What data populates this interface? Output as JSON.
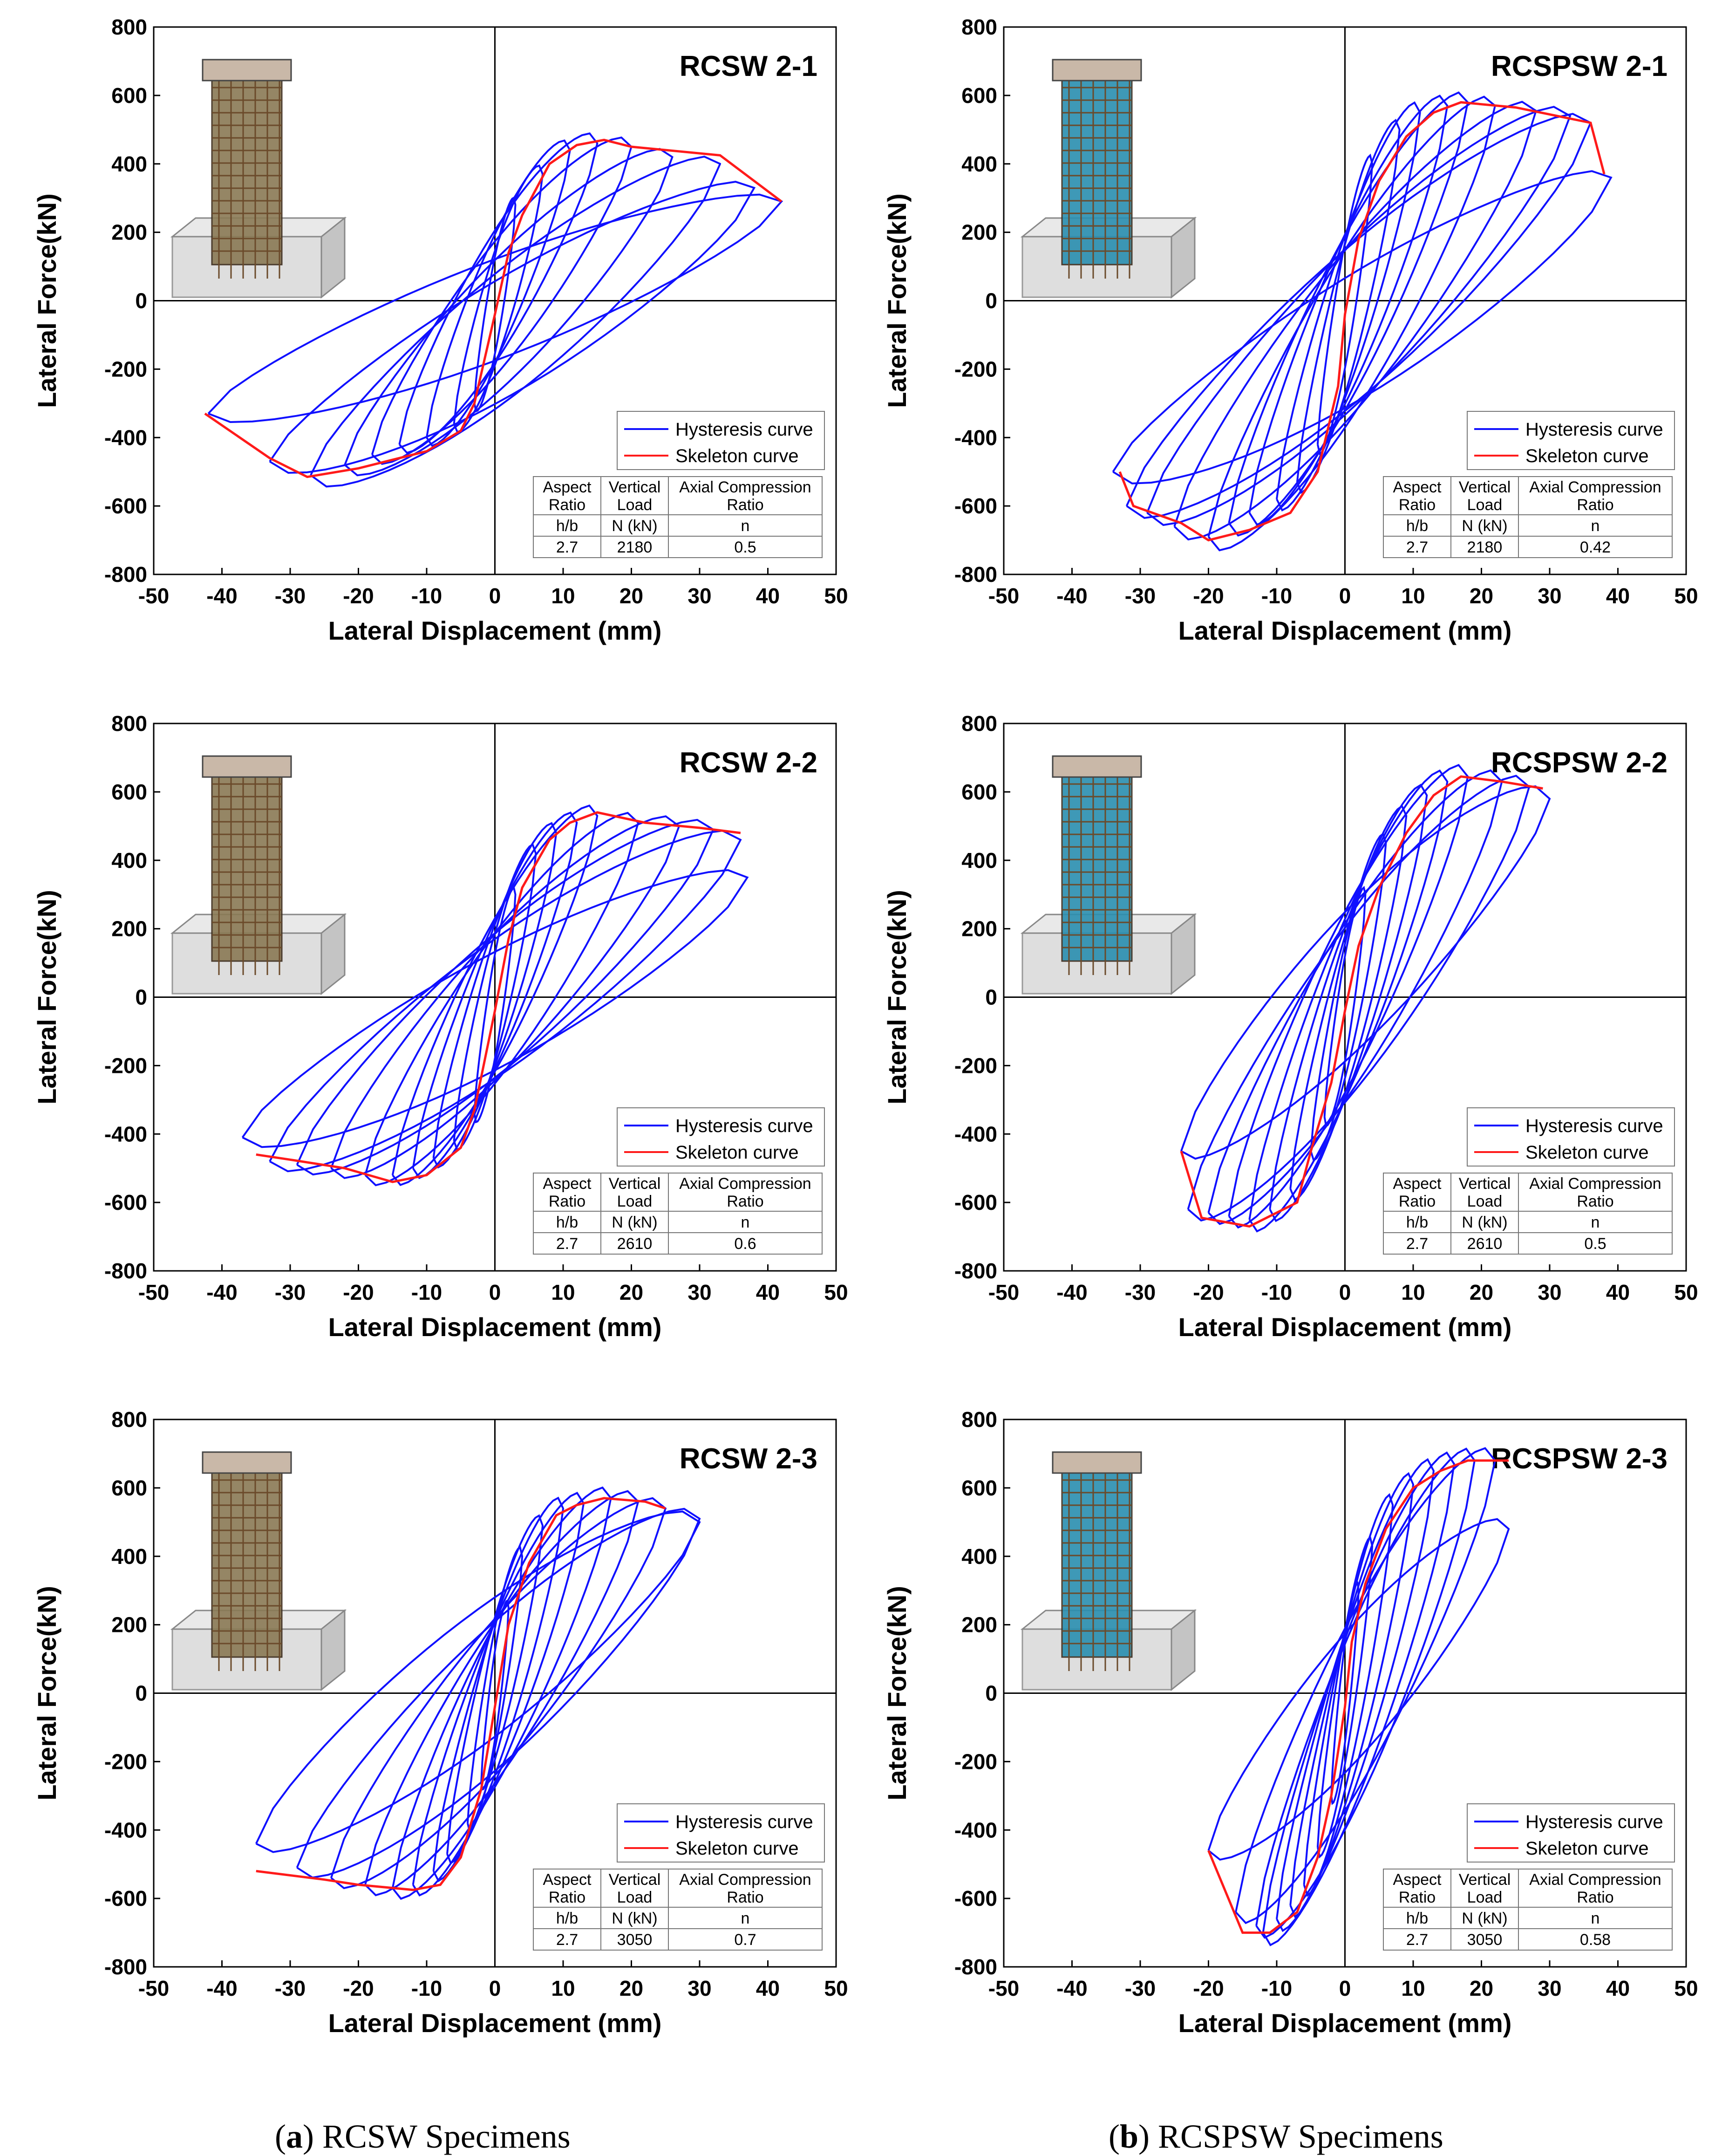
{
  "figure": {
    "caption_a_label": "a",
    "caption_a_text": "RCSW Specimens",
    "caption_b_label": "b",
    "caption_b_text": "RCSPSW Specimens"
  },
  "colors": {
    "hysteresis": "#1010ff",
    "skeleton": "#ff1a1a",
    "axis": "#000000",
    "concrete": "#d9d9d9",
    "plate": "#2a8fb0",
    "rebar": "#6b4a2a"
  },
  "chart_data": [
    {
      "type": "line",
      "title": "RCSW 2-1",
      "xlabel": "Lateral Displacement (mm)",
      "ylabel": "Lateral Force(kN)",
      "xlim": [
        -50,
        50
      ],
      "ylim": [
        -800,
        800
      ],
      "xticks": [
        -50,
        -40,
        -30,
        -20,
        -10,
        0,
        10,
        20,
        30,
        40,
        50
      ],
      "yticks": [
        -800,
        -600,
        -400,
        -200,
        0,
        200,
        400,
        600,
        800
      ],
      "legend": [
        "Hysteresis curve",
        "Skeleton curve"
      ],
      "specimen_icon": "rc-wall-icon",
      "table": {
        "headers": [
          [
            "Aspect",
            "Ratio"
          ],
          [
            "Vertical",
            "Load"
          ],
          [
            "Axial Compression",
            "Ratio"
          ]
        ],
        "units": [
          "h/b",
          "N (kN)",
          "n"
        ],
        "values": [
          "2.7",
          "2180",
          "0.5"
        ]
      },
      "skeleton": [
        [
          -42.5,
          -330
        ],
        [
          -33,
          -460
        ],
        [
          -27.5,
          -515
        ],
        [
          -20,
          -490
        ],
        [
          -10,
          -440
        ],
        [
          -5,
          -380
        ],
        [
          -3,
          -300
        ],
        [
          0,
          -40
        ],
        [
          2,
          140
        ],
        [
          4,
          250
        ],
        [
          8,
          400
        ],
        [
          12,
          455
        ],
        [
          16,
          470
        ],
        [
          20,
          450
        ],
        [
          33,
          425
        ],
        [
          42,
          290
        ]
      ],
      "peaks": [
        [
          3,
          -300,
          3,
          280
        ],
        [
          6,
          -360,
          7,
          370
        ],
        [
          10,
          -400,
          11,
          440
        ],
        [
          14,
          -420,
          15,
          460
        ],
        [
          18,
          -450,
          20,
          450
        ],
        [
          22,
          -480,
          26,
          420
        ],
        [
          27,
          -510,
          33,
          400
        ],
        [
          33,
          -470,
          38,
          330
        ],
        [
          42,
          -330,
          42,
          290
        ]
      ]
    },
    {
      "type": "line",
      "title": "RCSPSW 2-1",
      "xlabel": "Lateral Displacement (mm)",
      "ylabel": "Lateral Force(kN)",
      "xlim": [
        -50,
        50
      ],
      "ylim": [
        -800,
        800
      ],
      "xticks": [
        -50,
        -40,
        -30,
        -20,
        -10,
        0,
        10,
        20,
        30,
        40,
        50
      ],
      "yticks": [
        -800,
        -600,
        -400,
        -200,
        0,
        200,
        400,
        600,
        800
      ],
      "legend": [
        "Hysteresis curve",
        "Skeleton curve"
      ],
      "specimen_icon": "rcsp-wall-icon",
      "table": {
        "headers": [
          [
            "Aspect",
            "Ratio"
          ],
          [
            "Vertical",
            "Load"
          ],
          [
            "Axial Compression",
            "Ratio"
          ]
        ],
        "units": [
          "h/b",
          "N (kN)",
          "n"
        ],
        "values": [
          "2.7",
          "2180",
          "0.42"
        ]
      },
      "skeleton": [
        [
          -33,
          -500
        ],
        [
          -31,
          -600
        ],
        [
          -24,
          -650
        ],
        [
          -20,
          -700
        ],
        [
          -14,
          -670
        ],
        [
          -8,
          -620
        ],
        [
          -4,
          -500
        ],
        [
          -1,
          -250
        ],
        [
          0,
          -40
        ],
        [
          2,
          180
        ],
        [
          5,
          350
        ],
        [
          9,
          480
        ],
        [
          13,
          550
        ],
        [
          17,
          580
        ],
        [
          25,
          565
        ],
        [
          36,
          520
        ],
        [
          38,
          370
        ]
      ],
      "peaks": [
        [
          4,
          -420,
          4,
          400
        ],
        [
          7,
          -530,
          8,
          500
        ],
        [
          10,
          -580,
          11,
          550
        ],
        [
          14,
          -620,
          15,
          570
        ],
        [
          17,
          -650,
          18,
          580
        ],
        [
          20,
          -690,
          22,
          570
        ],
        [
          25,
          -660,
          28,
          555
        ],
        [
          29,
          -620,
          33,
          540
        ],
        [
          32,
          -600,
          36,
          520
        ],
        [
          34,
          -500,
          39,
          360
        ]
      ]
    },
    {
      "type": "line",
      "title": "RCSW 2-2",
      "xlabel": "Lateral Displacement (mm)",
      "ylabel": "Lateral Force(kN)",
      "xlim": [
        -50,
        50
      ],
      "ylim": [
        -800,
        800
      ],
      "xticks": [
        -50,
        -40,
        -30,
        -20,
        -10,
        0,
        10,
        20,
        30,
        40,
        50
      ],
      "yticks": [
        -800,
        -600,
        -400,
        -200,
        0,
        200,
        400,
        600,
        800
      ],
      "legend": [
        "Hysteresis curve",
        "Skeleton curve"
      ],
      "specimen_icon": "rc-wall-icon",
      "table": {
        "headers": [
          [
            "Aspect",
            "Ratio"
          ],
          [
            "Vertical",
            "Load"
          ],
          [
            "Axial Compression",
            "Ratio"
          ]
        ],
        "units": [
          "h/b",
          "N (kN)",
          "n"
        ],
        "values": [
          "2.7",
          "2610",
          "0.6"
        ]
      },
      "skeleton": [
        [
          -35,
          -460
        ],
        [
          -30,
          -475
        ],
        [
          -22,
          -500
        ],
        [
          -15,
          -540
        ],
        [
          -10,
          -520
        ],
        [
          -5,
          -440
        ],
        [
          -3,
          -330
        ],
        [
          0,
          -40
        ],
        [
          2,
          170
        ],
        [
          4,
          320
        ],
        [
          8,
          460
        ],
        [
          11,
          510
        ],
        [
          15,
          540
        ],
        [
          22,
          510
        ],
        [
          30,
          495
        ],
        [
          36,
          480
        ]
      ],
      "peaks": [
        [
          3,
          -340,
          3,
          300
        ],
        [
          6,
          -420,
          6,
          420
        ],
        [
          9,
          -470,
          9,
          480
        ],
        [
          12,
          -500,
          12,
          510
        ],
        [
          15,
          -520,
          15,
          530
        ],
        [
          19,
          -520,
          21,
          510
        ],
        [
          24,
          -500,
          27,
          500
        ],
        [
          29,
          -490,
          32,
          490
        ],
        [
          33,
          -480,
          36,
          460
        ],
        [
          37,
          -410,
          37,
          350
        ]
      ]
    },
    {
      "type": "line",
      "title": "RCSPSW 2-2",
      "xlabel": "Lateral Displacement (mm)",
      "ylabel": "Lateral Force(kN)",
      "xlim": [
        -50,
        50
      ],
      "ylim": [
        -800,
        800
      ],
      "xticks": [
        -50,
        -40,
        -30,
        -20,
        -10,
        0,
        10,
        20,
        30,
        40,
        50
      ],
      "yticks": [
        -800,
        -600,
        -400,
        -200,
        0,
        200,
        400,
        600,
        800
      ],
      "legend": [
        "Hysteresis curve",
        "Skeleton curve"
      ],
      "specimen_icon": "rcsp-wall-icon",
      "table": {
        "headers": [
          [
            "Aspect",
            "Ratio"
          ],
          [
            "Vertical",
            "Load"
          ],
          [
            "Axial Compression",
            "Ratio"
          ]
        ],
        "units": [
          "h/b",
          "N (kN)",
          "n"
        ],
        "values": [
          "2.7",
          "2610",
          "0.5"
        ]
      },
      "skeleton": [
        [
          -24,
          -450
        ],
        [
          -21,
          -645
        ],
        [
          -14,
          -670
        ],
        [
          -7,
          -600
        ],
        [
          -5,
          -450
        ],
        [
          -2,
          -250
        ],
        [
          0,
          -40
        ],
        [
          2,
          150
        ],
        [
          5,
          320
        ],
        [
          9,
          480
        ],
        [
          13,
          590
        ],
        [
          17,
          645
        ],
        [
          23,
          630
        ],
        [
          29,
          610
        ]
      ],
      "peaks": [
        [
          3,
          -350,
          3,
          300
        ],
        [
          5,
          -450,
          6,
          450
        ],
        [
          8,
          -560,
          9,
          530
        ],
        [
          11,
          -620,
          12,
          590
        ],
        [
          14,
          -650,
          15,
          630
        ],
        [
          17,
          -640,
          18,
          645
        ],
        [
          20,
          -630,
          23,
          630
        ],
        [
          23,
          -620,
          27,
          615
        ],
        [
          24,
          -450,
          30,
          580
        ]
      ]
    },
    {
      "type": "line",
      "title": "RCSW 2-3",
      "xlabel": "Lateral Displacement (mm)",
      "ylabel": "Lateral Force(kN)",
      "xlim": [
        -50,
        50
      ],
      "ylim": [
        -800,
        800
      ],
      "xticks": [
        -50,
        -40,
        -30,
        -20,
        -10,
        0,
        10,
        20,
        30,
        40,
        50
      ],
      "yticks": [
        -800,
        -600,
        -400,
        -200,
        0,
        200,
        400,
        600,
        800
      ],
      "legend": [
        "Hysteresis curve",
        "Skeleton curve"
      ],
      "specimen_icon": "rc-wall-icon",
      "table": {
        "headers": [
          [
            "Aspect",
            "Ratio"
          ],
          [
            "Vertical",
            "Load"
          ],
          [
            "Axial Compression",
            "Ratio"
          ]
        ],
        "units": [
          "h/b",
          "N (kN)",
          "n"
        ],
        "values": [
          "2.7",
          "3050",
          "0.7"
        ]
      },
      "skeleton": [
        [
          -35,
          -520
        ],
        [
          -25,
          -545
        ],
        [
          -20,
          -560
        ],
        [
          -12,
          -575
        ],
        [
          -8,
          -560
        ],
        [
          -5,
          -480
        ],
        [
          -2,
          -280
        ],
        [
          0,
          -40
        ],
        [
          2,
          200
        ],
        [
          5,
          380
        ],
        [
          9,
          520
        ],
        [
          12,
          550
        ],
        [
          16,
          570
        ],
        [
          22,
          560
        ],
        [
          25,
          540
        ]
      ],
      "peaks": [
        [
          2,
          -260,
          2,
          250
        ],
        [
          4,
          -380,
          4,
          400
        ],
        [
          7,
          -470,
          7,
          490
        ],
        [
          9,
          -520,
          10,
          540
        ],
        [
          12,
          -560,
          13,
          555
        ],
        [
          15,
          -570,
          17,
          570
        ],
        [
          19,
          -560,
          21,
          560
        ],
        [
          24,
          -540,
          25,
          540
        ],
        [
          29,
          -510,
          30,
          510
        ],
        [
          35,
          -440,
          30,
          500
        ]
      ]
    },
    {
      "type": "line",
      "title": "RCSPSW 2-3",
      "xlabel": "Lateral Displacement (mm)",
      "ylabel": "Lateral Force(kN)",
      "xlim": [
        -50,
        50
      ],
      "ylim": [
        -800,
        800
      ],
      "xticks": [
        -50,
        -40,
        -30,
        -20,
        -10,
        0,
        10,
        20,
        30,
        40,
        50
      ],
      "yticks": [
        -800,
        -600,
        -400,
        -200,
        0,
        200,
        400,
        600,
        800
      ],
      "legend": [
        "Hysteresis curve",
        "Skeleton curve"
      ],
      "specimen_icon": "rcsp-wall-icon",
      "table": {
        "headers": [
          [
            "Aspect",
            "Ratio"
          ],
          [
            "Vertical",
            "Load"
          ],
          [
            "Axial Compression",
            "Ratio"
          ]
        ],
        "units": [
          "h/b",
          "N (kN)",
          "n"
        ],
        "values": [
          "2.7",
          "3050",
          "0.58"
        ]
      },
      "skeleton": [
        [
          -20,
          -460
        ],
        [
          -15,
          -700
        ],
        [
          -11,
          -700
        ],
        [
          -7,
          -640
        ],
        [
          -4,
          -480
        ],
        [
          -2,
          -300
        ],
        [
          0,
          -40
        ],
        [
          1,
          150
        ],
        [
          3,
          320
        ],
        [
          6,
          480
        ],
        [
          10,
          600
        ],
        [
          14,
          650
        ],
        [
          18,
          680
        ],
        [
          24,
          680
        ]
      ],
      "peaks": [
        [
          2,
          -300,
          2,
          300
        ],
        [
          4,
          -450,
          4,
          430
        ],
        [
          6,
          -560,
          7,
          550
        ],
        [
          8,
          -620,
          10,
          610
        ],
        [
          10,
          -660,
          13,
          650
        ],
        [
          12,
          -700,
          16,
          670
        ],
        [
          13,
          -680,
          19,
          680
        ],
        [
          16,
          -640,
          22,
          680
        ],
        [
          20,
          -460,
          24,
          480
        ]
      ]
    }
  ]
}
